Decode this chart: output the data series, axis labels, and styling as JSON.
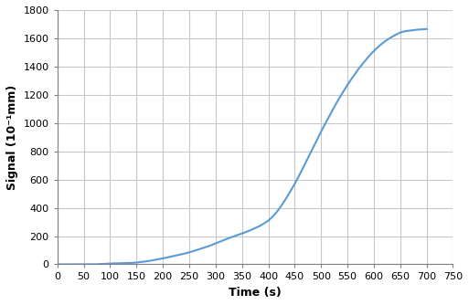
{
  "title": "",
  "xlabel": "Time (s)",
  "ylabel": "Signal (10⁻¹mm)",
  "xlim": [
    0,
    750
  ],
  "ylim": [
    0,
    1800
  ],
  "xticks": [
    0,
    50,
    100,
    150,
    200,
    250,
    300,
    350,
    400,
    450,
    500,
    550,
    600,
    650,
    700,
    750
  ],
  "yticks": [
    0,
    200,
    400,
    600,
    800,
    1000,
    1200,
    1400,
    1600,
    1800
  ],
  "line_color": "#5B9BD5",
  "line_width": 1.5,
  "background_color": "#ffffff",
  "grid_color": "#c8c8c8",
  "x_data": [
    0,
    10,
    20,
    30,
    40,
    50,
    60,
    70,
    80,
    90,
    100,
    110,
    120,
    130,
    140,
    150,
    160,
    170,
    180,
    190,
    200,
    210,
    220,
    230,
    240,
    250,
    260,
    270,
    280,
    290,
    300,
    310,
    320,
    330,
    340,
    350,
    360,
    370,
    380,
    390,
    400,
    410,
    420,
    430,
    440,
    450,
    460,
    470,
    480,
    490,
    500,
    510,
    520,
    530,
    540,
    550,
    560,
    570,
    580,
    590,
    600,
    610,
    620,
    630,
    640,
    650,
    660,
    670,
    680,
    690,
    700
  ],
  "y_data": [
    0,
    0,
    0,
    0,
    0,
    0,
    0,
    0,
    2,
    4,
    6,
    7,
    8,
    9,
    10,
    13,
    17,
    22,
    28,
    35,
    42,
    50,
    58,
    66,
    75,
    85,
    96,
    108,
    120,
    133,
    148,
    163,
    178,
    192,
    205,
    218,
    232,
    248,
    265,
    285,
    310,
    345,
    390,
    445,
    505,
    570,
    640,
    715,
    790,
    865,
    940,
    1010,
    1080,
    1148,
    1210,
    1270,
    1325,
    1378,
    1425,
    1470,
    1510,
    1545,
    1575,
    1600,
    1622,
    1640,
    1650,
    1655,
    1660,
    1663,
    1665
  ]
}
